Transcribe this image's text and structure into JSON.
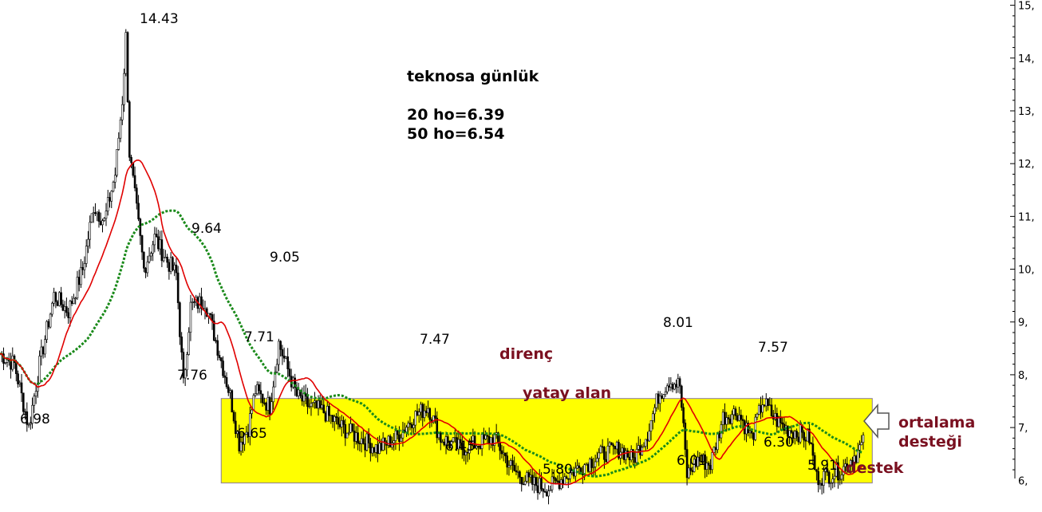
{
  "chart_data": {
    "type": "candlestick",
    "title": "teknosa günlük",
    "ma_labels": [
      "20 ho=6.39",
      "50 ho=6.54"
    ],
    "y_ticks": [
      "15,",
      "14,",
      "13,",
      "12,",
      "11,",
      "10,",
      "9,",
      "8,",
      "7,",
      "6,"
    ],
    "y_tick_values": [
      15,
      14,
      13,
      12,
      11,
      10,
      9,
      8,
      7,
      6
    ],
    "ylim": [
      5.4,
      15.1
    ],
    "zone": {
      "low": 5.95,
      "high": 7.55,
      "start_bar": 123,
      "end_bar": 485
    },
    "price_labels": [
      {
        "text": "14.43",
        "bar": 70,
        "value": 14.43
      },
      {
        "text": "9.64",
        "bar": 102,
        "value": 9.64
      },
      {
        "text": "9.05",
        "bar": 152,
        "value": 9.05
      },
      {
        "text": "7.71",
        "bar": 142,
        "value": 7.71
      },
      {
        "text": "7.76",
        "bar": 102,
        "value": 7.76
      },
      {
        "text": "6.98",
        "bar": 16,
        "value": 6.98
      },
      {
        "text": "6.65",
        "bar": 133,
        "value": 6.65
      },
      {
        "text": "7.47",
        "bar": 238,
        "value": 7.47
      },
      {
        "text": "6.45",
        "bar": 256,
        "value": 6.45
      },
      {
        "text": "5.80",
        "bar": 305,
        "value": 5.8
      },
      {
        "text": "8.01",
        "bar": 372,
        "value": 8.01
      },
      {
        "text": "6.01",
        "bar": 382,
        "value": 6.01
      },
      {
        "text": "7.57",
        "bar": 424,
        "value": 7.57
      },
      {
        "text": "6.30",
        "bar": 432,
        "value": 6.3
      },
      {
        "text": "5.91",
        "bar": 454,
        "value": 5.91
      }
    ],
    "annotations": [
      "direnç",
      "yatay alan",
      "ortalama",
      "desteği",
      "destek"
    ],
    "price_path": [
      [
        0,
        8.4
      ],
      [
        8,
        8.2
      ],
      [
        16,
        7.0
      ],
      [
        22,
        8.2
      ],
      [
        30,
        9.5
      ],
      [
        38,
        9.2
      ],
      [
        46,
        10.0
      ],
      [
        52,
        11.2
      ],
      [
        58,
        10.9
      ],
      [
        64,
        11.8
      ],
      [
        68,
        13.2
      ],
      [
        70,
        14.4
      ],
      [
        72,
        12.2
      ],
      [
        76,
        11.1
      ],
      [
        80,
        10.0
      ],
      [
        86,
        10.6
      ],
      [
        92,
        10.2
      ],
      [
        98,
        9.9
      ],
      [
        102,
        7.8
      ],
      [
        106,
        9.3
      ],
      [
        114,
        9.4
      ],
      [
        122,
        8.4
      ],
      [
        128,
        7.6
      ],
      [
        133,
        6.7
      ],
      [
        138,
        7.0
      ],
      [
        142,
        7.7
      ],
      [
        150,
        7.4
      ],
      [
        155,
        8.6
      ],
      [
        158,
        8.3
      ],
      [
        165,
        7.6
      ],
      [
        172,
        7.4
      ],
      [
        180,
        7.3
      ],
      [
        190,
        7.0
      ],
      [
        200,
        6.8
      ],
      [
        210,
        6.6
      ],
      [
        220,
        6.8
      ],
      [
        230,
        7.2
      ],
      [
        238,
        7.4
      ],
      [
        245,
        6.8
      ],
      [
        256,
        6.6
      ],
      [
        265,
        6.7
      ],
      [
        275,
        6.8
      ],
      [
        285,
        6.2
      ],
      [
        295,
        5.95
      ],
      [
        305,
        5.85
      ],
      [
        315,
        6.1
      ],
      [
        325,
        6.3
      ],
      [
        335,
        6.5
      ],
      [
        345,
        6.6
      ],
      [
        352,
        6.4
      ],
      [
        360,
        6.9
      ],
      [
        366,
        7.6
      ],
      [
        372,
        7.9
      ],
      [
        378,
        7.8
      ],
      [
        382,
        6.1
      ],
      [
        388,
        6.4
      ],
      [
        395,
        6.3
      ],
      [
        402,
        7.2
      ],
      [
        410,
        7.3
      ],
      [
        418,
        6.8
      ],
      [
        424,
        7.5
      ],
      [
        430,
        7.2
      ],
      [
        436,
        7.0
      ],
      [
        444,
        6.9
      ],
      [
        450,
        6.8
      ],
      [
        454,
        6.05
      ],
      [
        460,
        6.1
      ],
      [
        468,
        6.2
      ],
      [
        476,
        6.5
      ],
      [
        480,
        6.7
      ]
    ]
  },
  "text": {
    "title": "teknosa günlük",
    "ma20": "20 ho=6.39",
    "ma50": "50 ho=6.54",
    "direnc": "direnç",
    "yatay": "yatay alan",
    "ortalama": "ortalama",
    "destegi": "desteği",
    "destek": "destek"
  },
  "colors": {
    "zone_fill": "#ffff00",
    "zone_border": "#8a7a9a",
    "ma20": "#e00000",
    "ma50": "#1a8a1a",
    "candle": "#000000",
    "annotation": "#7a1020"
  }
}
